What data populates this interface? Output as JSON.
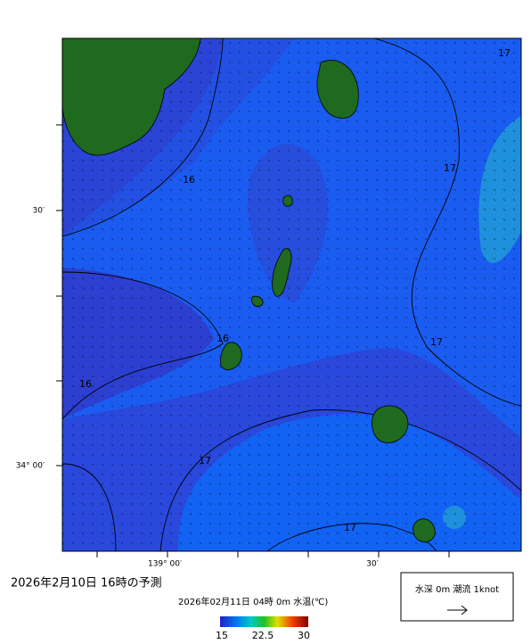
{
  "map": {
    "title": "2026年2月10日 16時の予測",
    "subtitle": "2026年02月11日 04時 0m 水温(℃)",
    "lat_labels": [
      "30′",
      "34° 00′"
    ],
    "lon_labels": [
      "139° 00′",
      "30′"
    ],
    "contour_labels": [
      16,
      16,
      16,
      17,
      17,
      17,
      17,
      17
    ],
    "legend": "水深 0m 潮流 1knot",
    "colorbar": {
      "min": 15,
      "max": 30,
      "ticks": [
        15,
        22.5,
        30
      ]
    }
  }
}
